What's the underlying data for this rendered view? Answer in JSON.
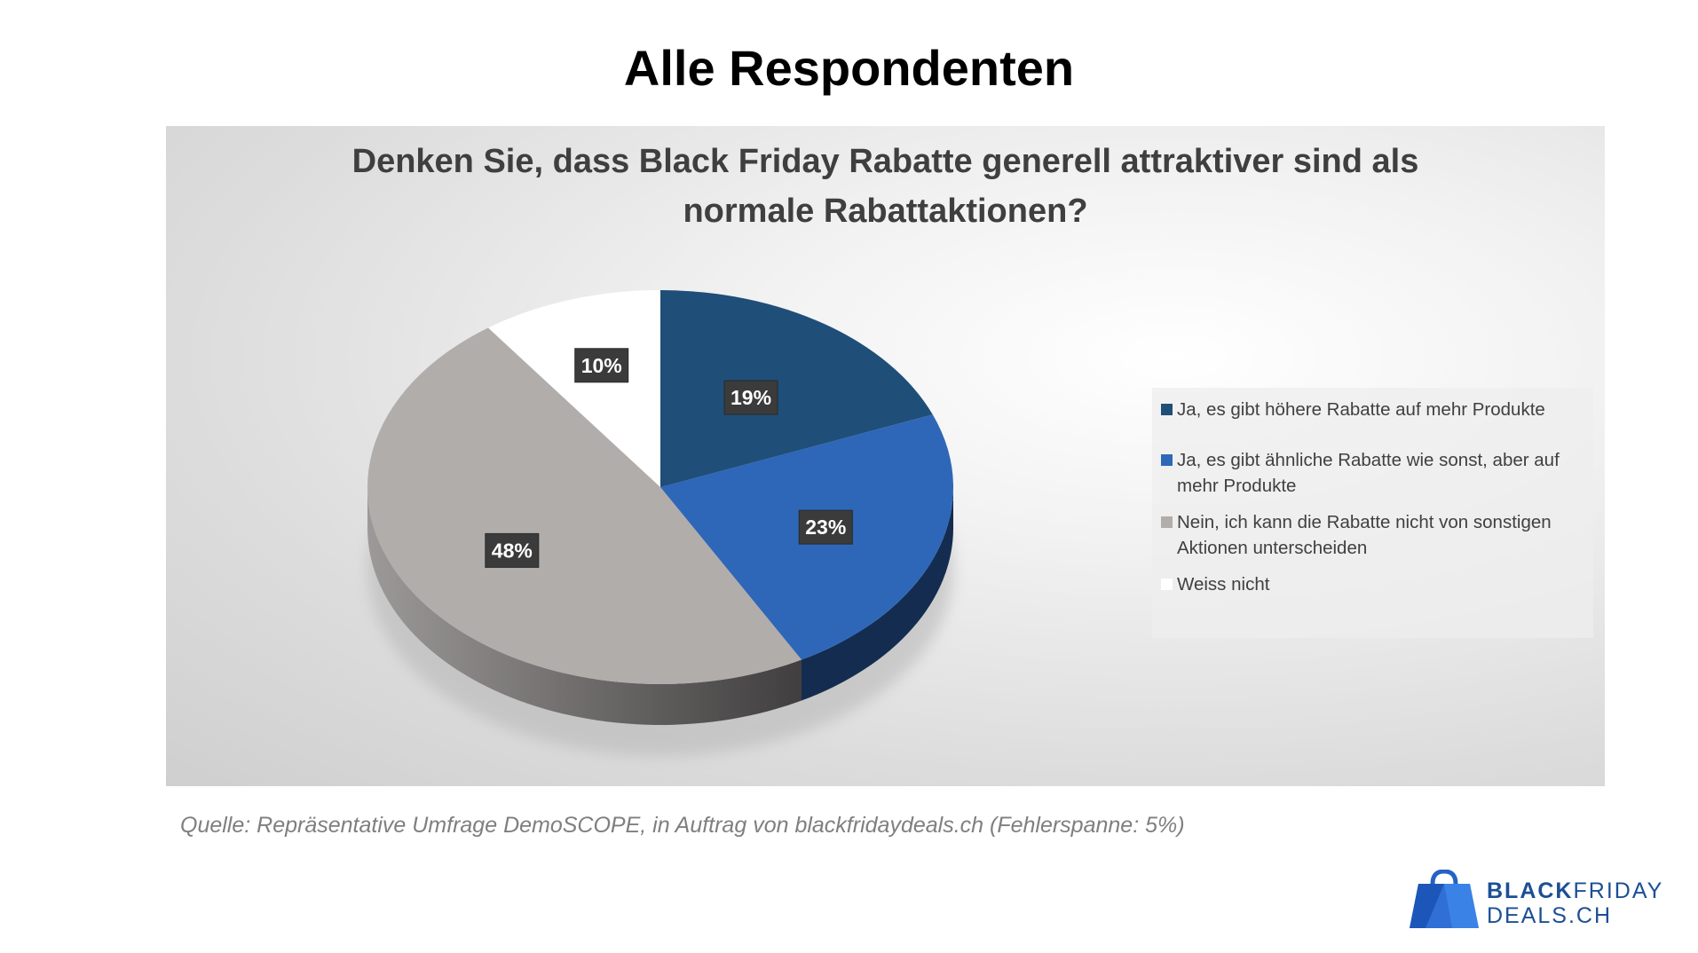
{
  "page": {
    "title": "Alle Respondenten",
    "source": "Quelle: Repräsentative Umfrage DemoSCOPE, in Auftrag von blackfridaydeals.ch (Fehlerspanne: 5%)"
  },
  "chart_data": {
    "type": "pie",
    "title_lines": [
      "Denken Sie, dass Black Friday Rabatte generell attraktiver sind als",
      "normale Rabattaktionen?"
    ],
    "categories": [
      "Ja, es gibt höhere Rabatte auf mehr Produkte",
      "Ja, es gibt ähnliche Rabatte wie sonst, aber auf mehr Produkte",
      "Nein, ich kann die Rabatte nicht von sonstigen Aktionen unterscheiden",
      "Weiss nicht"
    ],
    "values": [
      19,
      23,
      48,
      10
    ],
    "data_labels": [
      "19%",
      "23%",
      "48%",
      "10%"
    ],
    "colors": [
      "#1f4e79",
      "#2e67b8",
      "#b1adab",
      "#ffffff"
    ],
    "side_colors": [
      "#11304f",
      "#142c4f",
      "#5a5757",
      "#e0e0e0"
    ],
    "legend_position": "right",
    "style": "3d-pie"
  },
  "brand": {
    "line1_bold": "BLACK",
    "line1_light": "FRIDAY",
    "line2": "DEALS.CH",
    "icon": "shopping-bag-icon"
  }
}
